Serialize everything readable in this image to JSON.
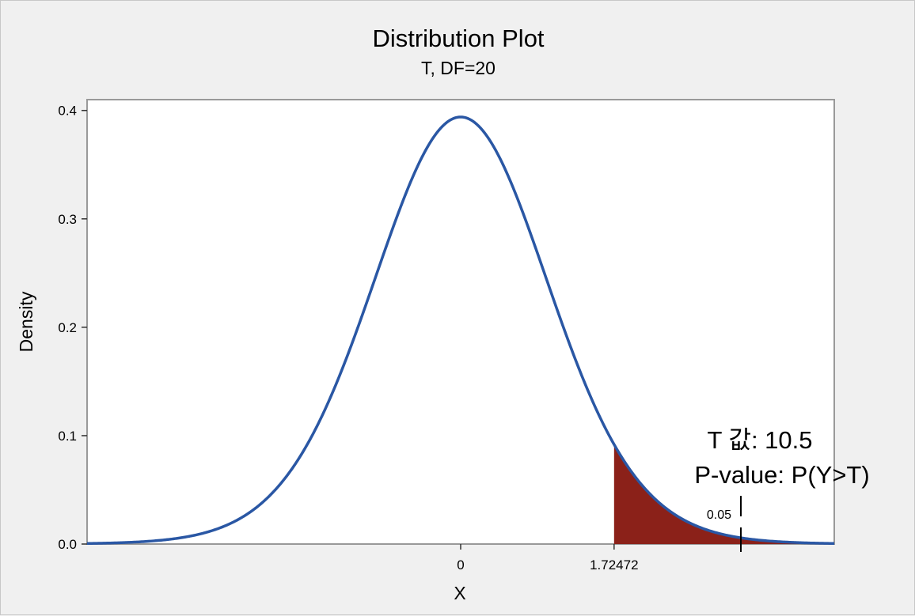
{
  "chart_data": {
    "type": "area",
    "title": "Distribution Plot",
    "subtitle": "T, DF=20",
    "xlabel": "X",
    "ylabel": "Density",
    "distribution": {
      "name": "T",
      "df": 20
    },
    "xlim": [
      -4.2,
      4.2
    ],
    "ylim": [
      0,
      0.41
    ],
    "y_ticks": [
      {
        "value": 0.0,
        "label": "0.0"
      },
      {
        "value": 0.1,
        "label": "0.1"
      },
      {
        "value": 0.2,
        "label": "0.2"
      },
      {
        "value": 0.3,
        "label": "0.3"
      },
      {
        "value": 0.4,
        "label": "0.4"
      }
    ],
    "x_ticks": [
      {
        "value": 0,
        "label": "0"
      },
      {
        "value": 1.72472,
        "label": "1.72472"
      }
    ],
    "shaded_region": {
      "from": 1.72472,
      "to": 4.2,
      "area": 0.05,
      "area_label": "0.05"
    },
    "annotation": {
      "lines": [
        "T 값: 10.5",
        "P-value: P(Y>T)"
      ],
      "marker_x": 3.15
    },
    "colors": {
      "curve": "#2a57a4",
      "shade": "#8b2119",
      "plot_bg": "#ffffff",
      "frame": "#999999"
    },
    "grid": false
  }
}
